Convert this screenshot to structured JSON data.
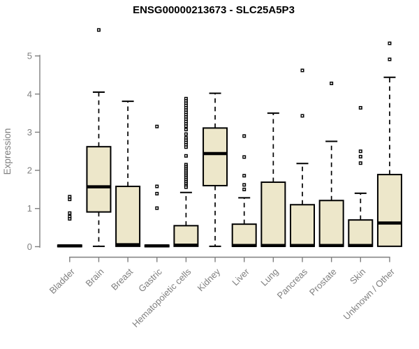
{
  "page": {
    "background": "#ffffff"
  },
  "chart_data": {
    "type": "boxplot",
    "title": "ENSG00000213673 - SLC25A5P3",
    "xlabel": "",
    "ylabel": "Expression",
    "ylim": [
      0,
      5
    ],
    "yticks": [
      "0",
      "1",
      "2",
      "3",
      "4",
      "5"
    ],
    "grid": false,
    "legend": "none",
    "colors": {
      "box_fill": "#EDE7CA",
      "box_border": "#000000",
      "median": "#000000",
      "whisker": "#000000",
      "outlier": "#000000",
      "axis": "#7f7f7f",
      "tick_label": "#7f7f7f",
      "title": "#000000"
    },
    "categories": [
      "Bladder",
      "Brain",
      "Breast",
      "Gastric",
      "Hematopoietic cells",
      "Kidney",
      "Liver",
      "Lung",
      "Pancreas",
      "Prostate",
      "Skin",
      "Unknown / Other"
    ],
    "boxes": [
      {
        "label": "Bladder",
        "whisker_low": 0,
        "q1": 0,
        "median": 0.02,
        "q3": 0.04,
        "whisker_high": 0.05,
        "outliers": [
          1.31,
          1.24,
          0.88,
          0.79,
          0.73
        ]
      },
      {
        "label": "Brain",
        "whisker_low": 0.01,
        "q1": 0.91,
        "median": 1.57,
        "q3": 2.62,
        "whisker_high": 4.05,
        "outliers": [
          5.68
        ]
      },
      {
        "label": "Breast",
        "whisker_low": 0,
        "q1": 0.01,
        "median": 0.05,
        "q3": 1.58,
        "whisker_high": 3.81,
        "outliers": []
      },
      {
        "label": "Gastric",
        "whisker_low": 0,
        "q1": 0,
        "median": 0.02,
        "q3": 0.04,
        "whisker_high": 0.05,
        "outliers": [
          3.15,
          1.58,
          1.39,
          1.01
        ]
      },
      {
        "label": "Hematopoietic cells",
        "whisker_low": 0,
        "q1": 0.01,
        "median": 0.04,
        "q3": 0.55,
        "whisker_high": 1.42,
        "outliers": [
          3.88,
          3.82,
          3.76,
          3.7,
          3.64,
          3.58,
          3.52,
          3.46,
          3.4,
          3.34,
          3.28,
          3.22,
          3.16,
          3.07,
          2.95,
          2.85,
          2.79,
          2.73,
          2.67,
          2.61,
          2.38,
          2.15,
          2.1,
          2.05,
          2.0,
          1.95,
          1.9,
          1.85,
          1.8,
          1.75,
          1.7,
          1.65,
          1.6,
          1.56
        ]
      },
      {
        "label": "Kidney",
        "whisker_low": 0.01,
        "q1": 1.6,
        "median": 2.44,
        "q3": 3.11,
        "whisker_high": 4.02,
        "outliers": []
      },
      {
        "label": "Liver",
        "whisker_low": 0,
        "q1": 0.01,
        "median": 0.03,
        "q3": 0.59,
        "whisker_high": 1.28,
        "outliers": [
          2.9,
          2.35,
          1.86,
          1.62,
          1.5
        ]
      },
      {
        "label": "Lung",
        "whisker_low": 0,
        "q1": 0.01,
        "median": 0.03,
        "q3": 1.69,
        "whisker_high": 3.5,
        "outliers": []
      },
      {
        "label": "Pancreas",
        "whisker_low": 0,
        "q1": 0.01,
        "median": 0.03,
        "q3": 1.1,
        "whisker_high": 2.18,
        "outliers": [
          4.62,
          3.43
        ]
      },
      {
        "label": "Prostate",
        "whisker_low": 0,
        "q1": 0.01,
        "median": 0.03,
        "q3": 1.21,
        "whisker_high": 2.76,
        "outliers": [
          4.28
        ]
      },
      {
        "label": "Skin",
        "whisker_low": 0,
        "q1": 0.01,
        "median": 0.03,
        "q3": 0.7,
        "whisker_high": 1.4,
        "outliers": [
          3.64,
          2.5,
          2.36,
          2.19
        ]
      },
      {
        "label": "Unknown / Other",
        "whisker_low": 0.01,
        "q1": 0.01,
        "median": 0.62,
        "q3": 1.89,
        "whisker_high": 4.44,
        "outliers": [
          5.33,
          4.91
        ]
      }
    ]
  }
}
